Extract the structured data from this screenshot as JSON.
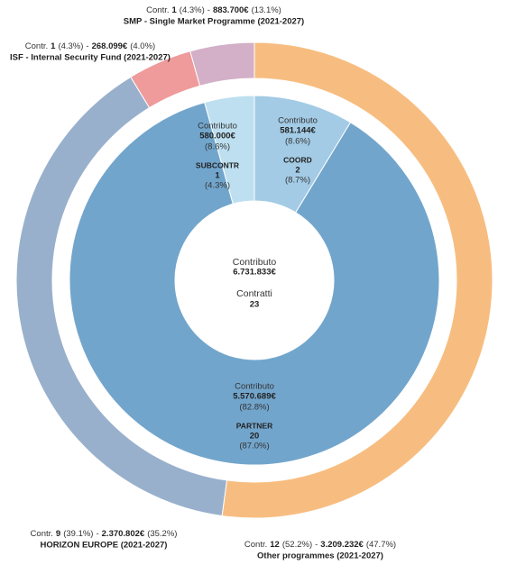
{
  "chart_data": {
    "type": "nested-donut",
    "contr_prefix": "Contr.",
    "separator": "-",
    "contribution_label": "Contributo",
    "center": {
      "contribution_label": "Contributo",
      "contribution": 6731833,
      "contribution_label_value": "6.731.833€",
      "contracts_label": "Contratti",
      "contracts": 23
    },
    "outer": {
      "categories": [
        "Other programmes (2021-2027)",
        "HORIZON EUROPE (2021-2027)",
        "ISF - Internal Security Fund (2021-2027)",
        "SMP - Single Market Programme (2021-2027)"
      ],
      "values": [
        12,
        9,
        1,
        1
      ],
      "contract_share": [
        52.2,
        39.1,
        4.3,
        4.3
      ],
      "contract_share_labels": [
        "(52.2%)",
        "(39.1%)",
        "(4.3%)",
        "(4.3%)"
      ],
      "contributions": [
        3209232,
        2370802,
        268099,
        883700
      ],
      "contribution_labels": [
        "3.209.232€",
        "2.370.802€",
        "268.099€",
        "883.700€"
      ],
      "contribution_share": [
        47.7,
        35.2,
        4.0,
        13.1
      ],
      "contribution_share_labels": [
        "(47.7%)",
        "(35.2%)",
        "(4.0%)",
        "(13.1%)"
      ],
      "colors": [
        "#f7bd80",
        "#98b0cc",
        "#ef9a9b",
        "#d3afc8"
      ]
    },
    "inner": {
      "categories": [
        "COORD",
        "PARTNER",
        "SUBCONTR"
      ],
      "values": [
        2,
        20,
        1
      ],
      "contract_share": [
        8.7,
        87.0,
        4.3
      ],
      "contract_share_labels": [
        "(8.7%)",
        "(87.0%)",
        "(4.3%)"
      ],
      "contributions": [
        581144,
        5570689,
        580000
      ],
      "contribution_labels": [
        "581.144€",
        "5.570.689€",
        "580.000€"
      ],
      "contribution_share": [
        8.6,
        82.8,
        8.6
      ],
      "contribution_share_labels": [
        "(8.6%)",
        "(82.8%)",
        "(8.6%)"
      ],
      "colors": [
        "#a3cbe5",
        "#72a5cc",
        "#bddff0"
      ]
    }
  }
}
